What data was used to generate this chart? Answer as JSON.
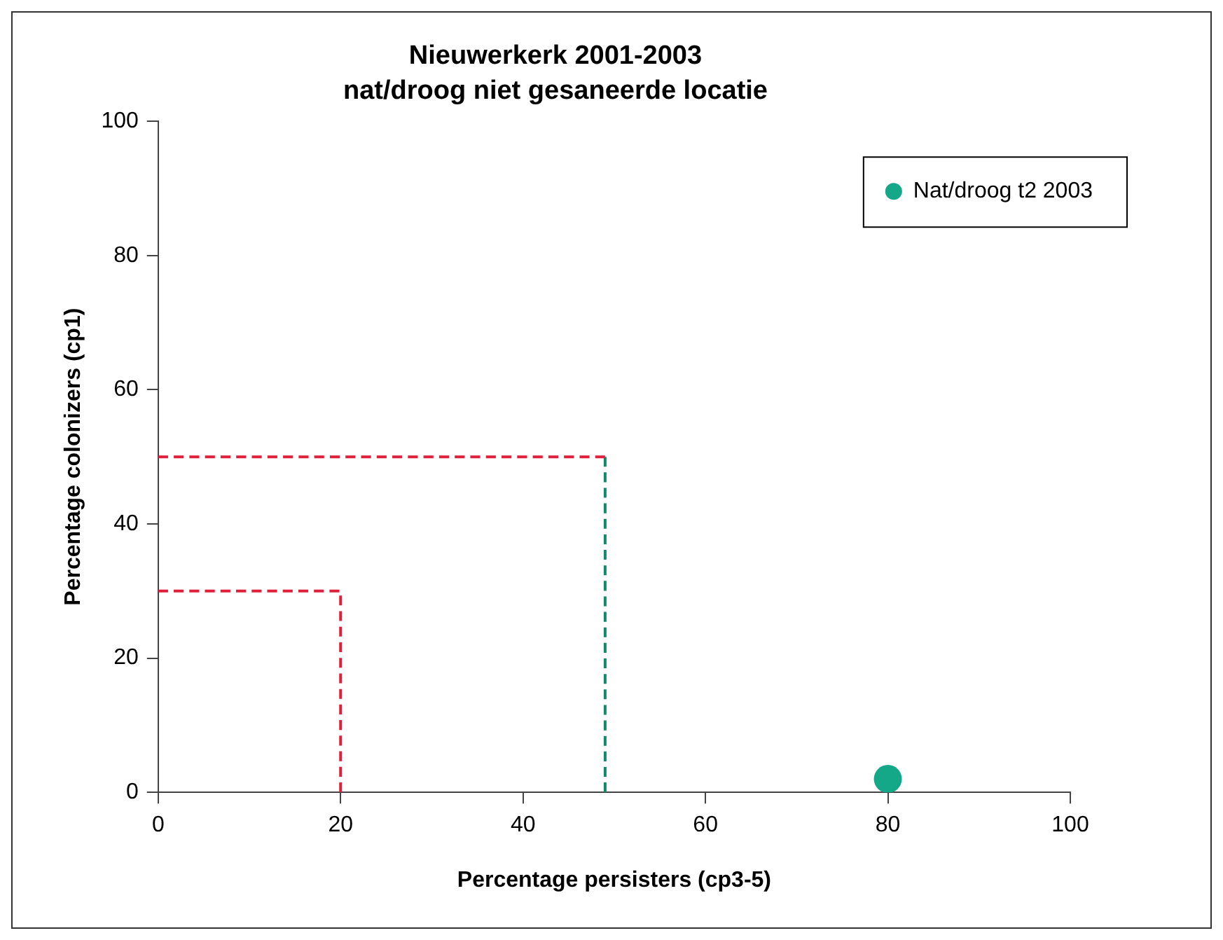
{
  "chart_data": {
    "type": "scatter",
    "title": "Nieuwerkerk 2001-2003",
    "subtitle": "nat/droog niet gesaneerde locatie",
    "xlabel": "Percentage persisters (cp3-5)",
    "ylabel": "Percentage colonizers (cp1)",
    "xlim": [
      0,
      100
    ],
    "ylim": [
      0,
      100
    ],
    "xticks": [
      0,
      20,
      40,
      60,
      80,
      100
    ],
    "yticks": [
      0,
      20,
      40,
      60,
      80,
      100
    ],
    "grid": false,
    "legend": "top right",
    "series": [
      {
        "type": "line",
        "x": [
          0,
          20,
          20
        ],
        "values": [
          30,
          30,
          0
        ],
        "color": "#e0203a",
        "line_style": "dashed",
        "marker": "none"
      },
      {
        "type": "line",
        "x": [
          0,
          49
        ],
        "values": [
          50,
          50
        ],
        "color": "#e0203a",
        "line_style": "dashed",
        "marker": "none"
      },
      {
        "type": "line",
        "x": [
          49,
          49
        ],
        "values": [
          50,
          0
        ],
        "color": "#14886a",
        "line_style": "dashed",
        "marker": "none"
      },
      {
        "type": "scatter",
        "name": "Nat/droog t2 2003",
        "x": [
          80
        ],
        "values": [
          2
        ],
        "color": "#14a888",
        "marker": "circle"
      }
    ]
  }
}
